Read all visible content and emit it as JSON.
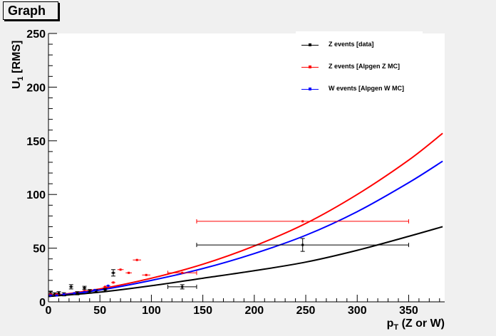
{
  "title": "Graph",
  "chart_data": {
    "type": "scatter",
    "xlabel_main": "p",
    "xlabel_sub": "T",
    "xlabel_rest": " (Z or W)",
    "ylabel_main": "U",
    "ylabel_sub": "1",
    "ylabel_rest": " [RMS]",
    "xlim": [
      0,
      385
    ],
    "ylim": [
      0,
      250
    ],
    "x_ticks": [
      0,
      50,
      100,
      150,
      200,
      250,
      300,
      350
    ],
    "y_ticks": [
      0,
      50,
      100,
      150,
      200,
      250
    ],
    "grid": false,
    "legend_position": "top-right",
    "series": [
      {
        "name": "Z events [data]",
        "color": "#000000",
        "points": [
          {
            "x": 2,
            "y": 8,
            "xerr": 2,
            "yerr": 1.5
          },
          {
            "x": 6,
            "y": 7,
            "xerr": 2,
            "yerr": 1.5
          },
          {
            "x": 10,
            "y": 8,
            "xerr": 2,
            "yerr": 1.5
          },
          {
            "x": 15,
            "y": 7,
            "xerr": 2,
            "yerr": 1.5
          },
          {
            "x": 22,
            "y": 14,
            "xerr": 2,
            "yerr": 2
          },
          {
            "x": 28,
            "y": 8,
            "xerr": 2,
            "yerr": 1.5
          },
          {
            "x": 35,
            "y": 13,
            "xerr": 2,
            "yerr": 1.5
          },
          {
            "x": 40,
            "y": 10,
            "xerr": 2,
            "yerr": 1.5
          },
          {
            "x": 46,
            "y": 10,
            "xerr": 2,
            "yerr": 1.5
          },
          {
            "x": 55,
            "y": 11,
            "xerr": 2,
            "yerr": 1.5
          },
          {
            "x": 63,
            "y": 27,
            "xerr": 2,
            "yerr": 3
          },
          {
            "x": 130,
            "y": 14,
            "xerr": 14,
            "yerr": 2
          },
          {
            "x": 247,
            "y": 53,
            "xerr": 103,
            "yerr": 6
          }
        ]
      },
      {
        "name": "Z events [Alpgen Z MC]",
        "color": "#ff0000",
        "points": [
          {
            "x": 2,
            "y": 7,
            "xerr": 2,
            "yerr": 0.5
          },
          {
            "x": 8,
            "y": 7,
            "xerr": 2,
            "yerr": 0.5
          },
          {
            "x": 15,
            "y": 7,
            "xerr": 2,
            "yerr": 0.5
          },
          {
            "x": 25,
            "y": 8,
            "xerr": 2,
            "yerr": 0.5
          },
          {
            "x": 35,
            "y": 10,
            "xerr": 2,
            "yerr": 0.5
          },
          {
            "x": 45,
            "y": 11,
            "xerr": 2,
            "yerr": 0.5
          },
          {
            "x": 55,
            "y": 14,
            "xerr": 2,
            "yerr": 0.5
          },
          {
            "x": 63,
            "y": 18,
            "xerr": 2,
            "yerr": 0.5
          },
          {
            "x": 70,
            "y": 30,
            "xerr": 3,
            "yerr": 0.5
          },
          {
            "x": 78,
            "y": 27,
            "xerr": 3,
            "yerr": 0.5
          },
          {
            "x": 86,
            "y": 39,
            "xerr": 4,
            "yerr": 0.5
          },
          {
            "x": 95,
            "y": 25,
            "xerr": 4,
            "yerr": 0.5
          },
          {
            "x": 130,
            "y": 27,
            "xerr": 14,
            "yerr": 0.5
          },
          {
            "x": 247,
            "y": 75,
            "xerr": 103,
            "yerr": 0.5
          }
        ],
        "curve_x": [
          0,
          50,
          100,
          150,
          200,
          250,
          300,
          350,
          383
        ],
        "curve_y": [
          5,
          12,
          22,
          35,
          52,
          73,
          100,
          132,
          157
        ]
      },
      {
        "name": "W events [Alpgen W MC]",
        "color": "#0000ff",
        "points": [
          {
            "x": 2,
            "y": 6,
            "xerr": 2,
            "yerr": 0.5
          },
          {
            "x": 8,
            "y": 6,
            "xerr": 2,
            "yerr": 0.5
          },
          {
            "x": 15,
            "y": 7,
            "xerr": 2,
            "yerr": 0.5
          },
          {
            "x": 25,
            "y": 8,
            "xerr": 2,
            "yerr": 0.5
          },
          {
            "x": 35,
            "y": 9,
            "xerr": 2,
            "yerr": 0.5
          },
          {
            "x": 45,
            "y": 11,
            "xerr": 2,
            "yerr": 0.5
          },
          {
            "x": 58,
            "y": 15,
            "xerr": 2,
            "yerr": 0.5
          }
        ],
        "curve_x": [
          0,
          50,
          100,
          150,
          200,
          250,
          300,
          350,
          383
        ],
        "curve_y": [
          5,
          11,
          20,
          31,
          45,
          62,
          84,
          111,
          131
        ]
      },
      {
        "name": "",
        "color": "#000000",
        "points": [],
        "curve_x": [
          0,
          50,
          100,
          150,
          200,
          250,
          300,
          350,
          383
        ],
        "curve_y": [
          5,
          9,
          15,
          22,
          29,
          37,
          48,
          61,
          70
        ]
      }
    ]
  }
}
